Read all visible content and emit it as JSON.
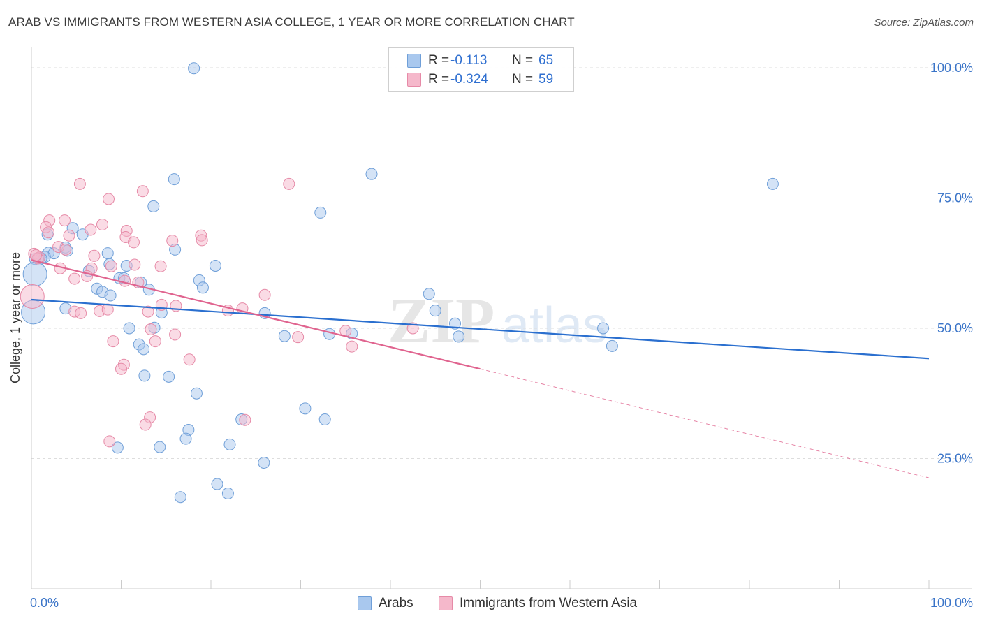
{
  "title": "ARAB VS IMMIGRANTS FROM WESTERN ASIA COLLEGE, 1 YEAR OR MORE CORRELATION CHART",
  "source": "Source: ZipAtlas.com",
  "watermark": {
    "zip": "ZIP",
    "atlas": "atlas"
  },
  "legend": {
    "rows": [
      {
        "r_label": "R =",
        "r_value": "-0.113",
        "n_label": "N =",
        "n_value": "65",
        "color": "#a9c8ee"
      },
      {
        "r_label": "R =",
        "r_value": "-0.324",
        "n_label": "N =",
        "n_value": "59",
        "color": "#f5b8cb"
      }
    ]
  },
  "bottom_legend": [
    {
      "label": "Arabs",
      "color": "#a9c8ee"
    },
    {
      "label": "Immigrants from Western Asia",
      "color": "#f5b8cb"
    }
  ],
  "colors": {
    "blue_fill": "#a9c8ee",
    "blue_stroke": "#6f9fd8",
    "blue_line": "#2a6fcf",
    "pink_fill": "#f5b8cb",
    "pink_stroke": "#e68aa7",
    "pink_line": "#e0648f",
    "tick_label": "#3a74c8"
  },
  "chart_data": {
    "type": "scatter",
    "title": "ARAB VS IMMIGRANTS FROM WESTERN ASIA COLLEGE, 1 YEAR OR MORE CORRELATION CHART",
    "xlabel": "",
    "ylabel": "College, 1 year or more",
    "xlim": [
      0,
      100
    ],
    "ylim": [
      0,
      102
    ],
    "x_tick_labels": [
      "0.0%",
      "100.0%"
    ],
    "y_ticks": [
      25,
      50,
      75,
      100
    ],
    "y_tick_labels": [
      "25.0%",
      "50.0%",
      "75.0%",
      "100.0%"
    ],
    "grid": "horizontal dashed",
    "legend_position": "top-center",
    "series": [
      {
        "name": "Arabs",
        "r": -0.113,
        "n": 65,
        "trend": {
          "x0": 0,
          "y0": 55.5,
          "x1": 100,
          "y1": 44.2
        },
        "points": [
          [
            18.1,
            99.9
          ],
          [
            15.9,
            78.6
          ],
          [
            13.6,
            73.4
          ],
          [
            1.8,
            68.0
          ],
          [
            4.6,
            69.2
          ],
          [
            5.7,
            68.0
          ],
          [
            3.8,
            65.5
          ],
          [
            4.0,
            64.9
          ],
          [
            1.9,
            64.5
          ],
          [
            2.5,
            64.4
          ],
          [
            1.5,
            63.7
          ],
          [
            0.8,
            63.5
          ],
          [
            0.4,
            63.3
          ],
          [
            1.1,
            63.4
          ],
          [
            8.5,
            64.4
          ],
          [
            16.0,
            65.1
          ],
          [
            6.4,
            61.0
          ],
          [
            8.7,
            62.3
          ],
          [
            10.6,
            62.0
          ],
          [
            20.5,
            62.0
          ],
          [
            0.4,
            60.4
          ],
          [
            9.8,
            59.6
          ],
          [
            10.3,
            59.6
          ],
          [
            12.2,
            58.8
          ],
          [
            18.7,
            59.2
          ],
          [
            19.1,
            57.8
          ],
          [
            7.3,
            57.6
          ],
          [
            7.9,
            57.0
          ],
          [
            8.8,
            56.3
          ],
          [
            13.1,
            57.4
          ],
          [
            3.8,
            53.8
          ],
          [
            14.5,
            53.0
          ],
          [
            0.2,
            53.1
          ],
          [
            10.9,
            50.0
          ],
          [
            13.7,
            50.1
          ],
          [
            12.0,
            46.9
          ],
          [
            12.5,
            46.0
          ],
          [
            28.2,
            48.5
          ],
          [
            33.2,
            48.9
          ],
          [
            35.7,
            49.0
          ],
          [
            47.2,
            50.9
          ],
          [
            47.6,
            48.4
          ],
          [
            44.3,
            56.6
          ],
          [
            45.0,
            53.4
          ],
          [
            63.7,
            50.0
          ],
          [
            64.7,
            46.6
          ],
          [
            12.6,
            40.9
          ],
          [
            15.3,
            40.7
          ],
          [
            18.4,
            37.5
          ],
          [
            30.5,
            34.6
          ],
          [
            32.7,
            32.5
          ],
          [
            23.4,
            32.5
          ],
          [
            17.5,
            30.5
          ],
          [
            17.2,
            28.8
          ],
          [
            22.1,
            27.7
          ],
          [
            9.6,
            27.1
          ],
          [
            14.3,
            27.2
          ],
          [
            25.9,
            24.2
          ],
          [
            20.7,
            20.1
          ],
          [
            21.9,
            18.3
          ],
          [
            16.6,
            17.6
          ],
          [
            37.9,
            79.6
          ],
          [
            32.2,
            72.2
          ],
          [
            82.6,
            77.7
          ],
          [
            26.0,
            52.9
          ]
        ]
      },
      {
        "name": "Immigrants from Western Asia",
        "r": -0.324,
        "n": 59,
        "trend": {
          "x0": 0,
          "y0": 63.1,
          "x1": 50,
          "y1": 42.2
        },
        "trend_dashed": {
          "x0": 50,
          "y0": 42.2,
          "x1": 100,
          "y1": 21.3
        },
        "points": [
          [
            5.4,
            77.7
          ],
          [
            28.7,
            77.7
          ],
          [
            8.6,
            74.8
          ],
          [
            12.4,
            76.3
          ],
          [
            2.0,
            70.7
          ],
          [
            3.7,
            70.7
          ],
          [
            1.6,
            69.4
          ],
          [
            7.9,
            69.9
          ],
          [
            1.9,
            68.4
          ],
          [
            6.6,
            68.9
          ],
          [
            10.6,
            68.7
          ],
          [
            4.2,
            67.8
          ],
          [
            10.5,
            67.5
          ],
          [
            11.4,
            66.5
          ],
          [
            15.7,
            66.8
          ],
          [
            18.9,
            67.8
          ],
          [
            19.0,
            66.9
          ],
          [
            3.0,
            65.6
          ],
          [
            3.8,
            65.1
          ],
          [
            0.3,
            64.3
          ],
          [
            7.0,
            63.9
          ],
          [
            0.9,
            63.6
          ],
          [
            0.7,
            63.4
          ],
          [
            3.2,
            61.5
          ],
          [
            6.7,
            61.5
          ],
          [
            6.2,
            60.0
          ],
          [
            8.9,
            61.9
          ],
          [
            14.4,
            61.9
          ],
          [
            4.8,
            59.5
          ],
          [
            10.4,
            59.1
          ],
          [
            11.9,
            58.8
          ],
          [
            0.1,
            56.1
          ],
          [
            14.5,
            54.5
          ],
          [
            4.8,
            53.2
          ],
          [
            7.6,
            53.3
          ],
          [
            5.5,
            52.9
          ],
          [
            13.0,
            53.2
          ],
          [
            8.5,
            53.6
          ],
          [
            21.9,
            53.4
          ],
          [
            23.5,
            53.8
          ],
          [
            26.0,
            56.4
          ],
          [
            13.3,
            49.8
          ],
          [
            16.0,
            48.8
          ],
          [
            9.1,
            47.5
          ],
          [
            13.8,
            47.5
          ],
          [
            29.7,
            48.3
          ],
          [
            35.0,
            49.5
          ],
          [
            42.5,
            50.0
          ],
          [
            35.7,
            46.5
          ],
          [
            17.6,
            44.0
          ],
          [
            10.3,
            43.0
          ],
          [
            10.0,
            42.2
          ],
          [
            13.2,
            32.9
          ],
          [
            12.7,
            31.5
          ],
          [
            23.8,
            32.4
          ],
          [
            8.7,
            28.3
          ],
          [
            16.1,
            54.3
          ],
          [
            0.5,
            64.0
          ],
          [
            11.5,
            62.2
          ]
        ]
      }
    ]
  }
}
